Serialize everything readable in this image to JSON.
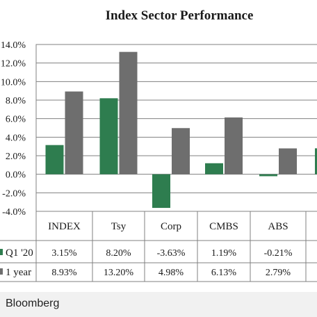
{
  "chart_data": {
    "type": "bar",
    "title": "Index Sector Performance",
    "categories": [
      "INDEX",
      "Tsy",
      "Corp",
      "CMBS",
      "ABS",
      ""
    ],
    "series": [
      {
        "name": "Q1 '20",
        "values": [
          3.15,
          8.2,
          -3.63,
          1.19,
          -0.21,
          2.8
        ]
      },
      {
        "name": "1 year",
        "values": [
          8.93,
          13.2,
          4.98,
          6.13,
          2.79,
          null
        ]
      }
    ],
    "table_rows": [
      {
        "label": "Q1 '20",
        "cells": [
          "3.15%",
          "8.20%",
          "-3.63%",
          "1.19%",
          "-0.21%",
          ""
        ]
      },
      {
        "label": "1 year",
        "cells": [
          "8.93%",
          "13.20%",
          "4.98%",
          "6.13%",
          "2.79%",
          ""
        ]
      }
    ],
    "yticks": [
      "14.0%",
      "12.0%",
      "10.0%",
      "8.0%",
      "6.0%",
      "4.0%",
      "2.0%",
      "0.0%",
      "-2.0%",
      "-4.0%"
    ],
    "ylim": [
      -4,
      14
    ],
    "grid": true,
    "colors": {
      "q1": "#2e7d4f",
      "year": "#6e6e6e",
      "grid": "#808080"
    }
  },
  "footer": {
    "source": "Bloomberg"
  }
}
